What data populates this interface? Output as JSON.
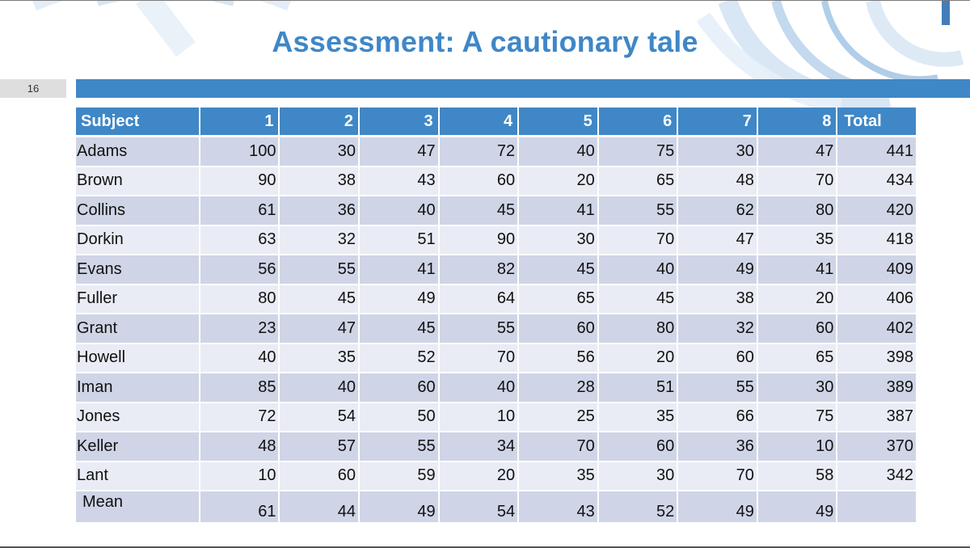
{
  "slide": {
    "title": "Assessment: A cautionary tale",
    "number": "16"
  },
  "colors": {
    "accent": "#3f87c7",
    "row_dark": "#cfd5e6",
    "row_light": "#e9ecf4",
    "slide_number_bg": "#dedede"
  },
  "table": {
    "headers": [
      "Subject",
      "1",
      "2",
      "3",
      "4",
      "5",
      "6",
      "7",
      "8",
      "Total"
    ],
    "rows": [
      {
        "name": "Adams",
        "scores": [
          "100",
          "30",
          "47",
          "72",
          "40",
          "75",
          "30",
          "47"
        ],
        "total": "441"
      },
      {
        "name": "Brown",
        "scores": [
          "90",
          "38",
          "43",
          "60",
          "20",
          "65",
          "48",
          "70"
        ],
        "total": "434"
      },
      {
        "name": "Collins",
        "scores": [
          "61",
          "36",
          "40",
          "45",
          "41",
          "55",
          "62",
          "80"
        ],
        "total": "420"
      },
      {
        "name": "Dorkin",
        "scores": [
          "63",
          "32",
          "51",
          "90",
          "30",
          "70",
          "47",
          "35"
        ],
        "total": "418"
      },
      {
        "name": "Evans",
        "scores": [
          "56",
          "55",
          "41",
          "82",
          "45",
          "40",
          "49",
          "41"
        ],
        "total": "409"
      },
      {
        "name": "Fuller",
        "scores": [
          "80",
          "45",
          "49",
          "64",
          "65",
          "45",
          "38",
          "20"
        ],
        "total": "406"
      },
      {
        "name": "Grant",
        "scores": [
          "23",
          "47",
          "45",
          "55",
          "60",
          "80",
          "32",
          "60"
        ],
        "total": "402"
      },
      {
        "name": "Howell",
        "scores": [
          "40",
          "35",
          "52",
          "70",
          "56",
          "20",
          "60",
          "65"
        ],
        "total": "398"
      },
      {
        "name": "Iman",
        "scores": [
          "85",
          "40",
          "60",
          "40",
          "28",
          "51",
          "55",
          "30"
        ],
        "total": "389"
      },
      {
        "name": "Jones",
        "scores": [
          "72",
          "54",
          "50",
          "10",
          "25",
          "35",
          "66",
          "75"
        ],
        "total": "387"
      },
      {
        "name": "Keller",
        "scores": [
          "48",
          "57",
          "55",
          "34",
          "70",
          "60",
          "36",
          "10"
        ],
        "total": "370"
      },
      {
        "name": "Lant",
        "scores": [
          "10",
          "60",
          "59",
          "20",
          "35",
          "30",
          "70",
          "58"
        ],
        "total": "342"
      }
    ],
    "mean_row": {
      "name": "Mean",
      "scores": [
        "61",
        "44",
        "49",
        "54",
        "43",
        "52",
        "49",
        "49"
      ],
      "total": ""
    }
  }
}
